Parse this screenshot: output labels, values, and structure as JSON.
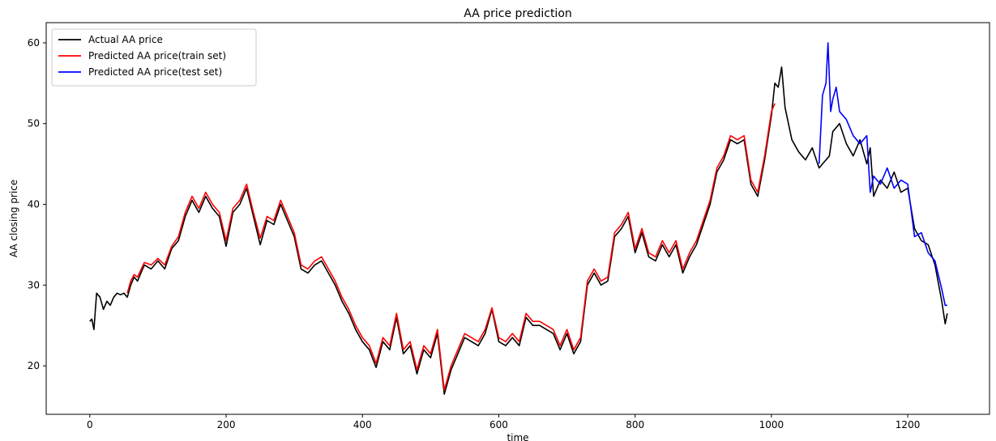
{
  "chart_data": {
    "type": "line",
    "title": "AA price prediction",
    "xlabel": "time",
    "ylabel": "AA closing price",
    "xlim": [
      -64,
      1320
    ],
    "ylim": [
      14,
      62.5
    ],
    "xticks": [
      0,
      200,
      400,
      600,
      800,
      1000,
      1200
    ],
    "yticks": [
      20,
      30,
      40,
      50,
      60
    ],
    "grid": false,
    "legend_position": "upper-left",
    "series": [
      {
        "name": "Actual AA price",
        "color": "#000000",
        "x": [
          0,
          3,
          6,
          10,
          15,
          20,
          25,
          30,
          35,
          40,
          45,
          50,
          55,
          60,
          65,
          70,
          80,
          90,
          100,
          110,
          120,
          130,
          140,
          150,
          160,
          170,
          180,
          190,
          200,
          210,
          220,
          230,
          240,
          250,
          260,
          270,
          280,
          290,
          300,
          310,
          320,
          330,
          340,
          350,
          360,
          370,
          380,
          390,
          400,
          410,
          420,
          430,
          440,
          450,
          460,
          470,
          480,
          490,
          500,
          510,
          520,
          530,
          540,
          550,
          560,
          570,
          580,
          590,
          600,
          610,
          620,
          630,
          640,
          650,
          660,
          670,
          680,
          690,
          700,
          710,
          720,
          730,
          740,
          750,
          760,
          770,
          780,
          790,
          800,
          810,
          820,
          830,
          840,
          850,
          860,
          870,
          880,
          890,
          900,
          910,
          920,
          930,
          940,
          950,
          960,
          970,
          980,
          990,
          1000,
          1005,
          1010,
          1015,
          1020,
          1030,
          1040,
          1050,
          1060,
          1070,
          1075,
          1080,
          1085,
          1090,
          1100,
          1110,
          1120,
          1130,
          1140,
          1145,
          1150,
          1160,
          1170,
          1180,
          1190,
          1200,
          1210,
          1220,
          1230,
          1240,
          1250,
          1255,
          1258
        ],
        "y": [
          25.5,
          25.8,
          24.5,
          29.0,
          28.5,
          27.0,
          28.0,
          27.5,
          28.5,
          29.0,
          28.8,
          29.0,
          28.5,
          30.0,
          31.0,
          30.5,
          32.5,
          32.0,
          33.0,
          32.0,
          34.5,
          35.5,
          38.5,
          40.5,
          39.0,
          41.0,
          39.5,
          38.5,
          34.8,
          39.0,
          40.0,
          42.0,
          38.5,
          35.0,
          38.0,
          37.5,
          40.0,
          38.0,
          36.0,
          32.0,
          31.5,
          32.5,
          33.0,
          31.5,
          30.0,
          28.0,
          26.5,
          24.5,
          23.0,
          22.0,
          19.8,
          23.0,
          22.0,
          26.0,
          21.5,
          22.5,
          19.0,
          22.0,
          21.0,
          24.0,
          16.5,
          19.5,
          21.5,
          23.5,
          23.0,
          22.5,
          24.0,
          27.0,
          23.0,
          22.5,
          23.5,
          22.5,
          26.0,
          25.0,
          25.0,
          24.5,
          24.0,
          22.0,
          24.0,
          21.5,
          23.0,
          30.0,
          31.5,
          30.0,
          30.5,
          36.0,
          37.0,
          38.5,
          34.0,
          36.5,
          33.5,
          33.0,
          35.0,
          33.5,
          35.0,
          31.5,
          33.5,
          35.0,
          37.5,
          40.0,
          44.0,
          45.5,
          48.0,
          47.5,
          48.0,
          42.5,
          41.0,
          45.5,
          51.0,
          55.0,
          54.5,
          57.0,
          52.0,
          48.0,
          46.5,
          45.5,
          47.0,
          44.5,
          45.0,
          45.5,
          46.0,
          49.0,
          50.0,
          47.5,
          46.0,
          48.0,
          45.0,
          47.0,
          41.0,
          43.0,
          42.0,
          44.0,
          41.5,
          42.0,
          37.0,
          35.5,
          35.0,
          32.5,
          28.0,
          25.2,
          26.5
        ]
      },
      {
        "name": "Predicted AA price(train set)",
        "color": "#ff0000",
        "x": [
          55,
          60,
          65,
          70,
          80,
          90,
          100,
          110,
          120,
          130,
          140,
          150,
          160,
          170,
          180,
          190,
          200,
          210,
          220,
          230,
          240,
          250,
          260,
          270,
          280,
          290,
          300,
          310,
          320,
          330,
          340,
          350,
          360,
          370,
          380,
          390,
          400,
          410,
          420,
          430,
          440,
          450,
          460,
          470,
          480,
          490,
          500,
          510,
          520,
          530,
          540,
          550,
          560,
          570,
          580,
          590,
          600,
          610,
          620,
          630,
          640,
          650,
          660,
          670,
          680,
          690,
          700,
          710,
          720,
          730,
          740,
          750,
          760,
          770,
          780,
          790,
          800,
          810,
          820,
          830,
          840,
          850,
          860,
          870,
          880,
          890,
          900,
          910,
          920,
          930,
          940,
          950,
          960,
          970,
          980,
          990,
          1000,
          1005
        ],
        "y": [
          29.0,
          30.5,
          31.3,
          31.0,
          32.8,
          32.5,
          33.3,
          32.5,
          34.8,
          36.0,
          39.0,
          41.0,
          39.5,
          41.5,
          40.0,
          39.0,
          35.5,
          39.5,
          40.5,
          42.5,
          39.0,
          35.8,
          38.5,
          38.0,
          40.5,
          38.5,
          36.5,
          32.5,
          32.0,
          33.0,
          33.5,
          32.0,
          30.5,
          28.5,
          27.0,
          25.0,
          23.5,
          22.5,
          20.3,
          23.5,
          22.5,
          26.5,
          22.0,
          23.0,
          19.5,
          22.5,
          21.5,
          24.5,
          17.0,
          20.0,
          22.0,
          24.0,
          23.5,
          23.0,
          24.5,
          27.2,
          23.5,
          23.0,
          24.0,
          23.0,
          26.5,
          25.5,
          25.5,
          25.0,
          24.5,
          22.5,
          24.5,
          22.0,
          23.5,
          30.5,
          32.0,
          30.5,
          31.0,
          36.5,
          37.5,
          39.0,
          34.5,
          37.0,
          34.0,
          33.5,
          35.5,
          34.0,
          35.5,
          32.0,
          34.0,
          35.5,
          38.0,
          40.5,
          44.5,
          46.0,
          48.5,
          48.0,
          48.5,
          43.0,
          41.5,
          46.0,
          51.5,
          52.5
        ]
      },
      {
        "name": "Predicted AA price(test set)",
        "color": "#0000ff",
        "x": [
          1070,
          1075,
          1080,
          1083,
          1087,
          1090,
          1095,
          1100,
          1110,
          1120,
          1130,
          1140,
          1145,
          1150,
          1160,
          1170,
          1180,
          1190,
          1200,
          1210,
          1220,
          1230,
          1240,
          1250,
          1255,
          1258
        ],
        "y": [
          45.0,
          53.5,
          55.0,
          60.0,
          51.5,
          53.0,
          54.5,
          51.5,
          50.5,
          48.5,
          47.5,
          48.5,
          41.5,
          43.5,
          42.5,
          44.5,
          42.0,
          43.0,
          42.5,
          36.0,
          36.5,
          34.0,
          33.0,
          29.5,
          27.5,
          27.5
        ]
      }
    ]
  }
}
